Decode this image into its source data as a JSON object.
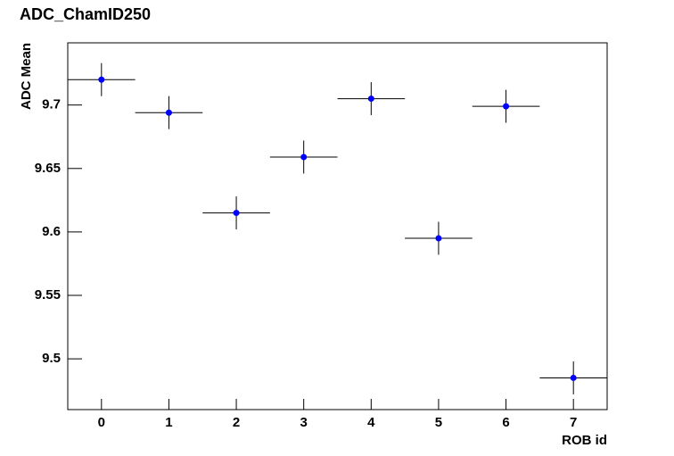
{
  "chart_data": {
    "type": "errorbar",
    "title": "ADC_ChamID250",
    "x_label": "ROB id",
    "y_label": "ADC Mean",
    "x": [
      0,
      1,
      2,
      3,
      4,
      5,
      6,
      7
    ],
    "values": [
      9.72,
      9.694,
      9.615,
      9.659,
      9.705,
      9.595,
      9.699,
      9.485
    ],
    "errors": [
      0.013,
      0.013,
      0.013,
      0.013,
      0.013,
      0.013,
      0.013,
      0.013
    ],
    "x_errors": [
      0.5,
      0.5,
      0.5,
      0.5,
      0.5,
      0.5,
      0.5,
      0.5
    ],
    "color": "#0000ff",
    "error_color": "#000000",
    "xlim": [
      -0.5,
      7.5
    ],
    "xticks": [
      0,
      1,
      2,
      3,
      4,
      5,
      6,
      7
    ],
    "ylim": [
      9.46,
      9.749
    ],
    "yticks": [
      9.5,
      9.55,
      9.6,
      9.65,
      9.7
    ]
  }
}
